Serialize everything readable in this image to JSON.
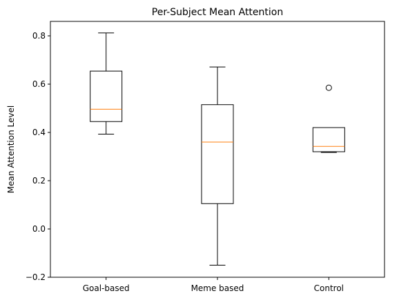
{
  "chart_data": {
    "type": "box",
    "title": "Per-Subject Mean Attention",
    "xlabel": "",
    "ylabel": "Mean Attention Level",
    "ylim": [
      -0.2,
      0.86
    ],
    "yticks": [
      -0.2,
      0.0,
      0.2,
      0.4,
      0.6,
      0.8
    ],
    "ytick_labels": [
      "−0.2",
      "0.0",
      "0.2",
      "0.4",
      "0.6",
      "0.8"
    ],
    "grid": false,
    "categories": [
      "Goal-based",
      "Meme based",
      "Control"
    ],
    "boxes": [
      {
        "whisker_low": 0.393,
        "q1": 0.445,
        "median": 0.496,
        "q3": 0.654,
        "whisker_high": 0.812,
        "outliers": []
      },
      {
        "whisker_low": -0.15,
        "q1": 0.105,
        "median": 0.36,
        "q3": 0.515,
        "whisker_high": 0.671,
        "outliers": []
      },
      {
        "whisker_low": 0.317,
        "q1": 0.32,
        "median": 0.342,
        "q3": 0.42,
        "whisker_high": 0.42,
        "outliers": [
          0.585
        ]
      }
    ],
    "colors": {
      "box": "#000000",
      "median": "#ff7f0e",
      "background": "#ffffff"
    }
  }
}
